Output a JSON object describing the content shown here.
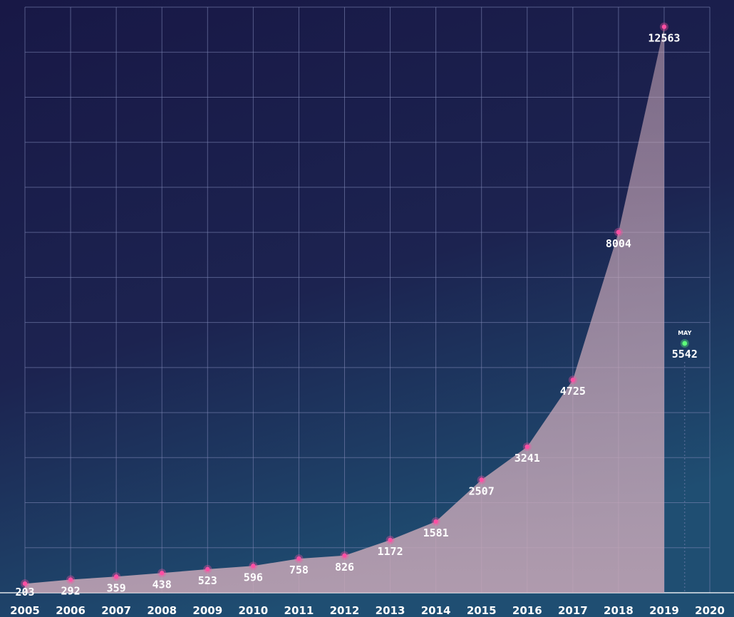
{
  "chart_data": {
    "type": "area",
    "title": "",
    "xlabel": "",
    "ylabel": "",
    "x": [
      2005,
      2006,
      2007,
      2008,
      2009,
      2010,
      2011,
      2012,
      2013,
      2014,
      2015,
      2016,
      2017,
      2018,
      2019
    ],
    "x_ticks": [
      "2005",
      "2006",
      "2007",
      "2008",
      "2009",
      "2010",
      "2011",
      "2012",
      "2013",
      "2014",
      "2015",
      "2016",
      "2017",
      "2018",
      "2019",
      "2020"
    ],
    "series": [
      {
        "values": [
          203,
          292,
          359,
          438,
          523,
          596,
          758,
          826,
          1172,
          1581,
          2507,
          3241,
          4725,
          8004,
          12563
        ]
      }
    ],
    "labels": [
      "203",
      "292",
      "359",
      "438",
      "523",
      "596",
      "758",
      "826",
      "1172",
      "1581",
      "2507",
      "3241",
      "4725",
      "8004",
      "12563"
    ],
    "annotation": {
      "x": 2019.45,
      "value": 5542,
      "value_label": "5542",
      "note": "MAY"
    },
    "ylim": [
      0,
      13000
    ],
    "xlim": [
      2005,
      2020
    ],
    "grid": true,
    "legend": "none",
    "colors": {
      "background_top": "#181846",
      "background_mid": "#1c2350",
      "background_bottom": "#1f4e72",
      "grid": "#7d86b4",
      "area": "#c9a8b8",
      "marker": "#ff4fa3",
      "annotation_marker": "#5dff7a",
      "text": "#ffffff"
    }
  }
}
